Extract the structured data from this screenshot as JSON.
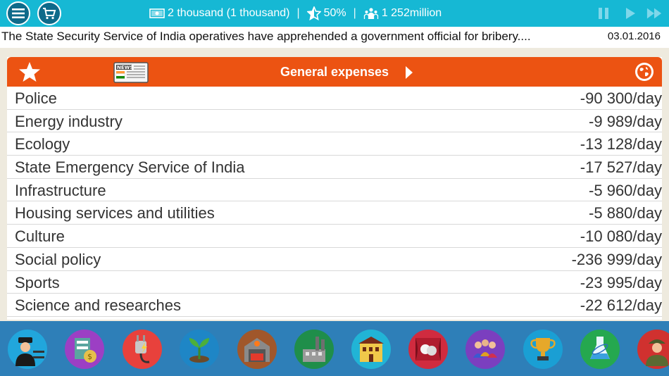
{
  "topbar": {
    "money": "2 thousand (1 thousand)",
    "rating": "50%",
    "population": "1 252million"
  },
  "news": {
    "text": "The State Security Service of India operatives have apprehended a government official for bribery....",
    "date": "03.01.2016"
  },
  "panel": {
    "title": "General expenses",
    "news_badge": "NEWS",
    "rows": [
      {
        "name": "Police",
        "value": "-90 300/day"
      },
      {
        "name": "Energy industry",
        "value": "-9 989/day"
      },
      {
        "name": "Ecology",
        "value": "-13 128/day"
      },
      {
        "name": "State Emergency Service of India",
        "value": "-17 527/day"
      },
      {
        "name": "Infrastructure",
        "value": "-5 960/day"
      },
      {
        "name": "Housing services and utilities",
        "value": "-5 880/day"
      },
      {
        "name": "Culture",
        "value": "-10 080/day"
      },
      {
        "name": "Social policy",
        "value": "-236 999/day"
      },
      {
        "name": "Sports",
        "value": "-23 995/day"
      },
      {
        "name": "Science and researches",
        "value": "-22 612/day"
      }
    ]
  },
  "categories": [
    {
      "icon": "police-icon",
      "color": "#21a6dc"
    },
    {
      "icon": "energy-money-icon",
      "color": "#9c3fc4"
    },
    {
      "icon": "ecology-plug-icon",
      "color": "#e8413c"
    },
    {
      "icon": "plant-icon",
      "color": "#1e86c6"
    },
    {
      "icon": "emergency-service-icon",
      "color": "#a0572b"
    },
    {
      "icon": "factory-icon",
      "color": "#1f8e4a"
    },
    {
      "icon": "housing-icon",
      "color": "#21b4d6"
    },
    {
      "icon": "culture-theater-icon",
      "color": "#d02b3f"
    },
    {
      "icon": "social-people-icon",
      "color": "#7b3fbf"
    },
    {
      "icon": "sports-trophy-icon",
      "color": "#1a9fd4"
    },
    {
      "icon": "science-flask-icon",
      "color": "#25a84f"
    },
    {
      "icon": "military-icon",
      "color": "#d0312f"
    }
  ],
  "colors": {
    "topbar": "#16b8d4",
    "header": "#ec5312",
    "bottombar": "#2e7fb8"
  }
}
